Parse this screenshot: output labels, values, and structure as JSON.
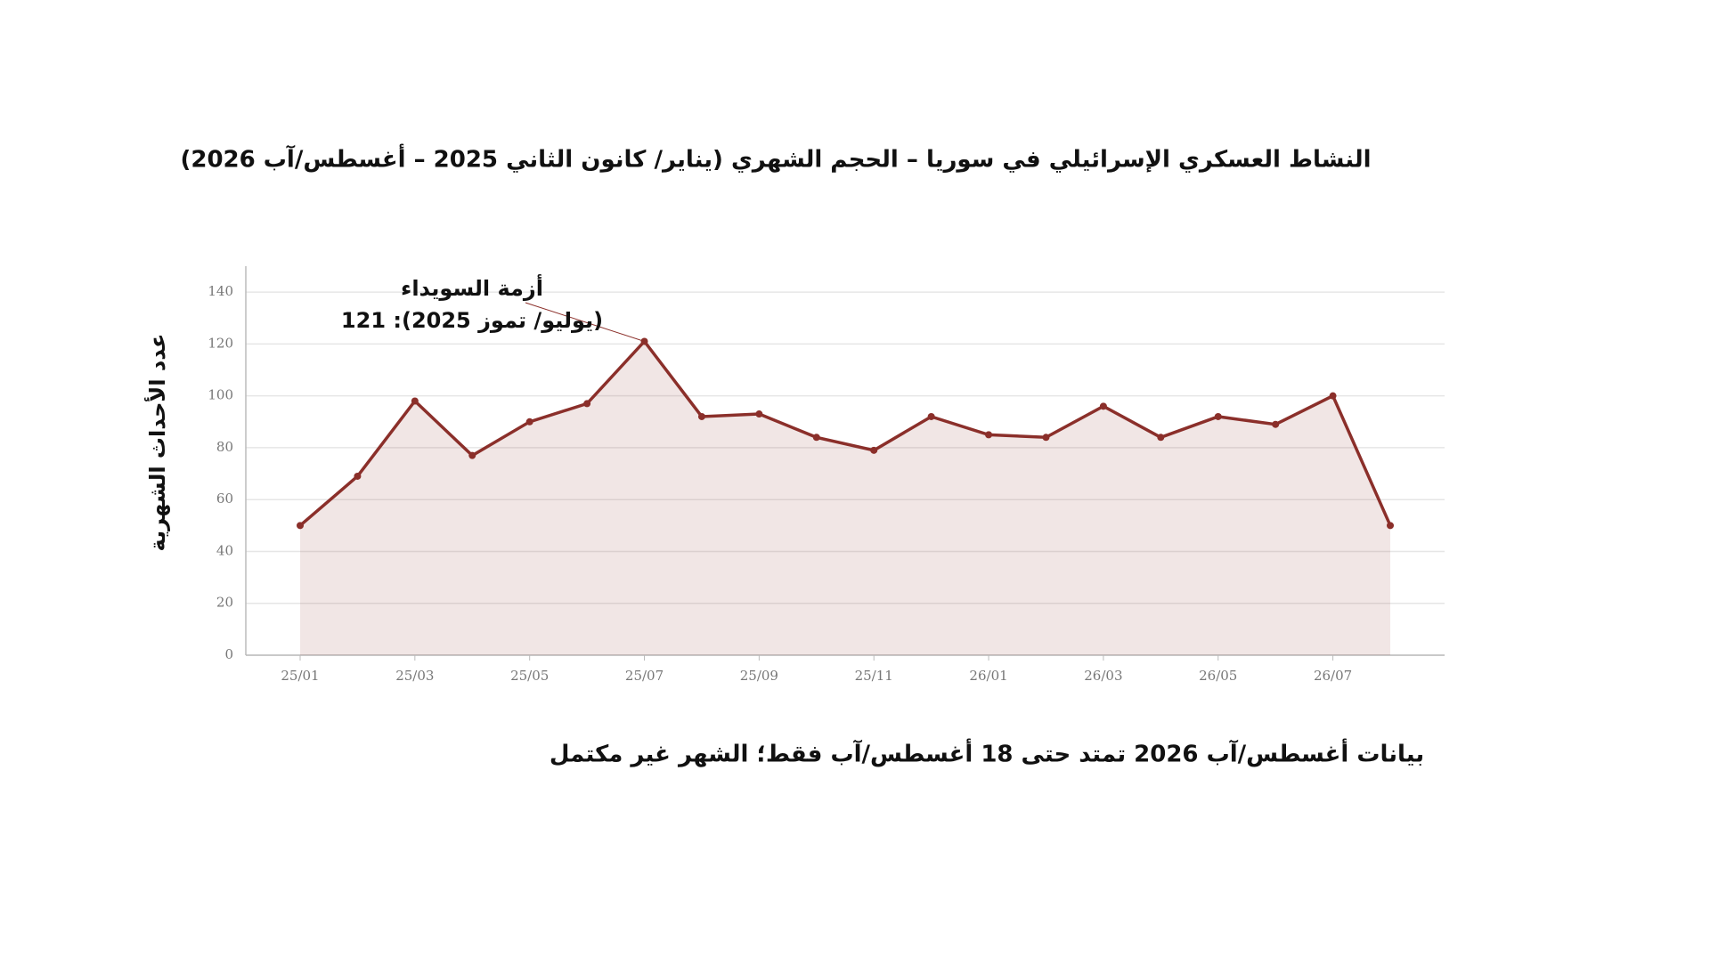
{
  "chart_data": {
    "type": "line",
    "title": "النشاط العسكري الإسرائيلي في سوريا – الحجم الشهري (يناير/ كانون الثاني 2025 – أغسطس/آب 2026)",
    "y_label": "عدد الأحداث الشهرية",
    "annotation": [
      "أزمة السويداء",
      "(يوليو/ تموز 2025): 121"
    ],
    "footnote": "بيانات أغسطس/آب 2026 تمتد حتى 18 أغسطس/آب فقط؛ الشهر غير مكتمل",
    "categories": [
      "25/01",
      null,
      "25/03",
      null,
      "25/05",
      null,
      "25/07",
      null,
      "25/09",
      null,
      "25/11",
      null,
      "26/01",
      null,
      "26/03",
      null,
      "26/05",
      null,
      "26/07",
      null
    ],
    "values": [
      50,
      69,
      98,
      77,
      90,
      97,
      121,
      92,
      93,
      84,
      79,
      92,
      85,
      84,
      96,
      84,
      92,
      89,
      100,
      50
    ],
    "color": "#8b2f2a",
    "ylim": [
      0,
      150
    ],
    "yticks": [
      0,
      20,
      40,
      60,
      80,
      100,
      120,
      140
    ],
    "grid": true
  }
}
